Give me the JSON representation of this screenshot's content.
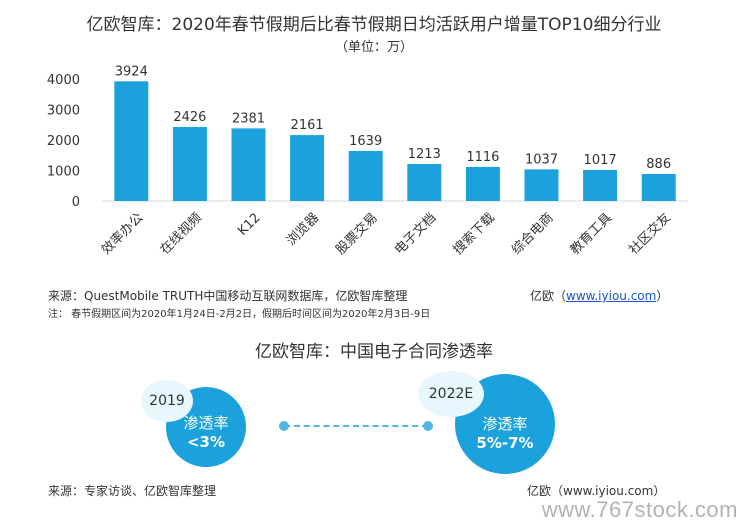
{
  "chart_data": [
    {
      "type": "bar",
      "title": "亿欧智库：2020年春节假期后比春节假期日均活跃用户增量TOP10细分行业",
      "subtitle": "（单位：万）",
      "categories": [
        "效率办公",
        "在线视频",
        "K12",
        "浏览器",
        "股票交易",
        "电子文档",
        "搜索下载",
        "综合电商",
        "教育工具",
        "社区交友"
      ],
      "values": [
        3924,
        2426,
        2381,
        2161,
        1639,
        1213,
        1116,
        1037,
        1017,
        886
      ],
      "ylim": [
        0,
        4000
      ],
      "yticks": [
        "0",
        "1000",
        "2000",
        "3000",
        "4000"
      ],
      "bar_color": "#1ba1dc",
      "grid": false
    },
    {
      "type": "other",
      "title": "亿欧智库：中国电子合同渗透率",
      "points": [
        {
          "year": "2019",
          "label": "渗透率",
          "value": "<3%"
        },
        {
          "year": "2022E",
          "label": "渗透率",
          "value": "5%-7%"
        }
      ],
      "circle_color": "#1ba1dc",
      "tag_color": "#e8f6fd",
      "line_color": "#53b6e2"
    }
  ],
  "sources": {
    "chart1_source": "来源：QuestMobile TRUTH中国移动互联网数据库，亿欧智库整理",
    "chart1_site_prefix": "亿欧（",
    "chart1_site_link": "www.iyiou.com",
    "chart1_site_suffix": "）",
    "chart1_note": "注：  春节假期区间为2020年1月24日-2月2日，假期后时间区间为2020年2月3日-9日",
    "chart2_source": "来源：专家访谈、亿欧智库整理",
    "chart2_site": "亿欧（www.iyiou.com）"
  },
  "watermark": "www.767stock.com"
}
